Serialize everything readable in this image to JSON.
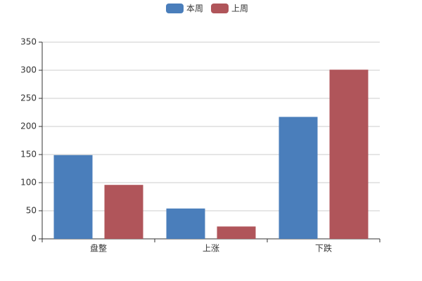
{
  "chart_data": {
    "type": "bar",
    "categories": [
      "盘整",
      "上涨",
      "下跌"
    ],
    "series": [
      {
        "name": "本周",
        "color": "#4a7ebb",
        "values": [
          149,
          54,
          217
        ]
      },
      {
        "name": "上周",
        "color": "#b0555a",
        "values": [
          96,
          22,
          301
        ]
      }
    ],
    "ylim": [
      0,
      350
    ],
    "yticks": [
      0,
      50,
      100,
      150,
      200,
      250,
      300,
      350
    ],
    "grid": true,
    "legend": "top"
  }
}
